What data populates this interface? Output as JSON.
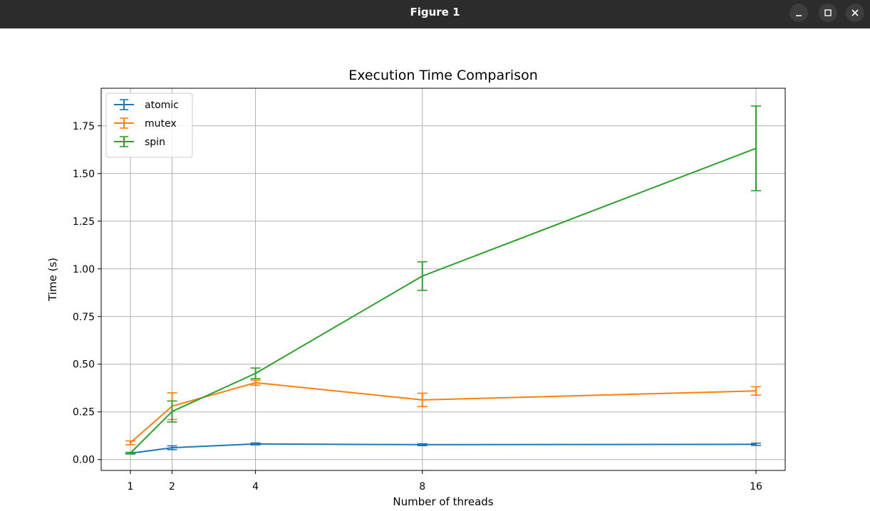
{
  "window": {
    "title": "Figure 1",
    "controls": [
      "minimize",
      "maximize",
      "close"
    ]
  },
  "chart_data": {
    "type": "line",
    "title": "Execution Time Comparison",
    "xlabel": "Number of threads",
    "ylabel": "Time (s)",
    "x": [
      1,
      2,
      4,
      8,
      16
    ],
    "x_ticks": [
      1,
      2,
      4,
      8,
      16
    ],
    "xlim": [
      0.3,
      16.7
    ],
    "y_ticks": [
      "0.00",
      "0.25",
      "0.50",
      "0.75",
      "1.00",
      "1.25",
      "1.50",
      "1.75"
    ],
    "ylim": [
      -0.057,
      1.947
    ],
    "grid": true,
    "legend_position": "top-left",
    "error_bars": true,
    "series": [
      {
        "name": "atomic",
        "color": "#1f77b4",
        "values": [
          0.033,
          0.062,
          0.082,
          0.078,
          0.08
        ],
        "errors": [
          0.004,
          0.01,
          0.005,
          0.005,
          0.006
        ]
      },
      {
        "name": "mutex",
        "color": "#ff7f0e",
        "values": [
          0.088,
          0.28,
          0.403,
          0.313,
          0.36
        ],
        "errors": [
          0.01,
          0.07,
          0.013,
          0.035,
          0.022
        ]
      },
      {
        "name": "spin",
        "color": "#2ca02c",
        "values": [
          0.034,
          0.252,
          0.452,
          0.962,
          1.632
        ],
        "errors": [
          0.004,
          0.055,
          0.028,
          0.075,
          0.222
        ]
      }
    ]
  }
}
